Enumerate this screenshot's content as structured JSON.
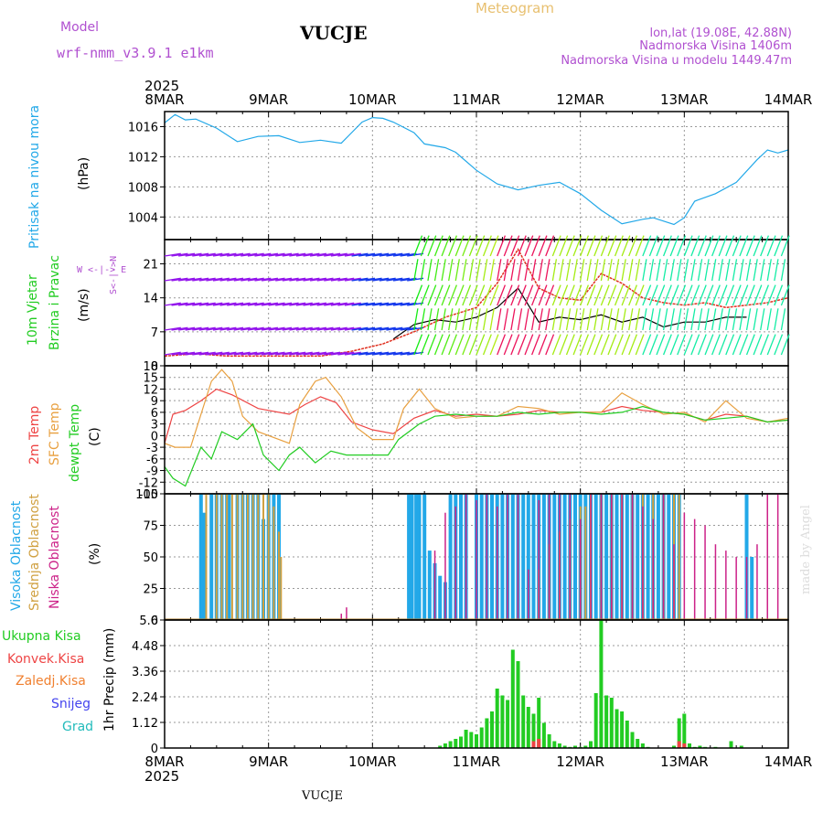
{
  "header": {
    "model_label": "Model",
    "model_name": "wrf-nmm_v3.9.1 e1km",
    "station": "VUCJE",
    "title": "Meteogram",
    "coords": "lon,lat (19.08E, 42.88N)",
    "altitude": "Nadmorska Visina 1406m",
    "model_altitude": "Nadmorska Visina u modelu 1449.47m",
    "year": "2025",
    "credit": "made by Angel"
  },
  "time_axis": {
    "labels": [
      "8MAR",
      "9MAR",
      "10MAR",
      "11MAR",
      "12MAR",
      "13MAR",
      "14MAR"
    ],
    "range_days": [
      0,
      6
    ]
  },
  "colors": {
    "pressure": "#22a8e8",
    "temp_2m": "#ee4444",
    "temp_sfc": "#e8a040",
    "dewpt": "#22cc22",
    "cloud_high": "#22a8e8",
    "cloud_mid": "#d0a040",
    "cloud_low": "#cc2288",
    "precip_total": "#22cc22",
    "precip_conv": "#ee4444"
  },
  "panels": {
    "pressure": {
      "title": "Pritisak na nivou mora",
      "unit": "(hPa)"
    },
    "wind": {
      "title_1": "10m Vjetar",
      "title_2": "Brzina i Pravac",
      "unit": "(m/s)",
      "compass_ns": "S<-|->N",
      "compass_we": "W <-|-> E"
    },
    "temperature": {
      "title_2m": "2m Temp",
      "title_sfc": "SFC Temp",
      "title_dewpt": "dewpt Temp",
      "unit": "(C)"
    },
    "clouds": {
      "title_high": "Visoka Oblacnost",
      "title_mid": "Srednja Oblacnost",
      "title_low": "Niska Oblacnost",
      "unit": "(%)"
    },
    "precip": {
      "title_total": "Ukupna Kisa",
      "title_conv": "Konvek.Kisa",
      "title_frz": "Zaledj.Kisa",
      "title_snow": "Snijeg",
      "title_hail": "Grad",
      "unit": "1hr Precip (mm)"
    }
  },
  "chart_data": [
    {
      "type": "line",
      "title": "",
      "ylabel": "(hPa)",
      "ylim": [
        1001,
        1018
      ],
      "yticks": [
        "1004",
        "1008",
        "1012",
        "1016"
      ],
      "grid": true,
      "series": [
        {
          "name": "Pritisak na nivou mora",
          "x": [
            0,
            0.1,
            0.2,
            0.3,
            0.5,
            0.7,
            0.9,
            1.1,
            1.3,
            1.5,
            1.7,
            1.9,
            2.0,
            2.1,
            2.2,
            2.4,
            2.5,
            2.7,
            2.8,
            3.0,
            3.2,
            3.4,
            3.6,
            3.8,
            4.0,
            4.2,
            4.4,
            4.6,
            4.7,
            4.9,
            5.0,
            5.1,
            5.3,
            5.5,
            5.7,
            5.8,
            5.9,
            6.0
          ],
          "y": [
            1016.5,
            1017.6,
            1016.9,
            1017.0,
            1015.8,
            1014.0,
            1014.7,
            1014.8,
            1013.9,
            1014.2,
            1013.8,
            1016.6,
            1017.2,
            1017.1,
            1016.6,
            1015.2,
            1013.7,
            1013.2,
            1012.6,
            1010.2,
            1008.4,
            1007.6,
            1008.2,
            1008.6,
            1007.1,
            1004.9,
            1003.1,
            1003.7,
            1003.9,
            1003.0,
            1003.9,
            1006.1,
            1007.1,
            1008.6,
            1011.6,
            1012.9,
            1012.5,
            1012.9
          ]
        }
      ]
    },
    {
      "type": "line",
      "title": "",
      "ylabel": "(m/s)",
      "ylim": [
        0,
        26
      ],
      "yticks": [
        "0",
        "7",
        "14",
        "21"
      ],
      "grid": true,
      "series": [
        {
          "name": "10m Vjetar (black)",
          "x": [
            2.2,
            2.4,
            2.6,
            2.8,
            3.0,
            3.2,
            3.4,
            3.6,
            3.8,
            4.0,
            4.2,
            4.4,
            4.6,
            4.8,
            5.0,
            5.2,
            5.4,
            5.6
          ],
          "y": [
            5.5,
            8.5,
            9.5,
            9.0,
            10.0,
            12.0,
            16.0,
            9.0,
            10.0,
            9.5,
            10.5,
            9.0,
            10.0,
            8.0,
            9.0,
            9.0,
            10.0,
            10.0
          ]
        },
        {
          "name": "gust (red)",
          "x": [
            0,
            0.3,
            0.6,
            0.9,
            1.2,
            1.5,
            1.8,
            2.1,
            2.4,
            2.7,
            3.0,
            3.2,
            3.4,
            3.6,
            3.8,
            4.0,
            4.2,
            4.4,
            4.6,
            4.8,
            5.0,
            5.2,
            5.4,
            5.6,
            5.8,
            6.0
          ],
          "y": [
            2.0,
            2.5,
            2.0,
            2.0,
            2.0,
            2.0,
            3.0,
            4.5,
            7.0,
            10.0,
            12.0,
            17.0,
            24.0,
            16.0,
            14.0,
            13.5,
            19.0,
            17.0,
            14.0,
            13.0,
            12.5,
            13.0,
            12.0,
            12.5,
            13.0,
            14.0
          ]
        }
      ]
    },
    {
      "type": "line",
      "title": "",
      "ylabel": "(C)",
      "ylim": [
        -15,
        18
      ],
      "yticks": [
        "18",
        "15",
        "12",
        "9",
        "6",
        "3",
        "0",
        "-3",
        "-6",
        "-9",
        "-12",
        "-15"
      ],
      "grid": true,
      "series": [
        {
          "name": "2m Temp",
          "x": [
            0,
            0.08,
            0.2,
            0.35,
            0.5,
            0.65,
            0.9,
            1.2,
            1.35,
            1.5,
            1.65,
            1.8,
            2.0,
            2.2,
            2.4,
            2.6,
            2.8,
            3.0,
            3.2,
            3.4,
            3.6,
            3.8,
            4.0,
            4.2,
            4.4,
            4.6,
            4.8,
            5.0,
            5.2,
            5.4,
            5.6,
            5.8,
            6.0
          ],
          "y": [
            -2,
            5.5,
            6.5,
            9,
            12,
            10.5,
            7,
            5.5,
            8,
            10,
            8.5,
            3.5,
            1.5,
            0.5,
            4.5,
            6.5,
            5,
            5.5,
            5,
            5.5,
            6.5,
            6,
            6,
            6,
            7.5,
            6.5,
            6,
            5.5,
            4,
            5.5,
            5,
            3.5,
            4
          ]
        },
        {
          "name": "SFC Temp",
          "x": [
            0,
            0.1,
            0.25,
            0.45,
            0.55,
            0.65,
            0.75,
            0.9,
            1.2,
            1.3,
            1.45,
            1.55,
            1.7,
            1.85,
            2.0,
            2.2,
            2.3,
            2.45,
            2.6,
            2.8,
            3.0,
            3.2,
            3.4,
            3.6,
            3.8,
            4.0,
            4.2,
            4.4,
            4.6,
            4.8,
            5.0,
            5.2,
            5.4,
            5.6,
            5.8,
            6.0
          ],
          "y": [
            -2,
            -3,
            -3,
            14,
            17,
            14,
            5,
            1,
            -2,
            8,
            14,
            15,
            10,
            2,
            -1,
            -1,
            7,
            12,
            7,
            4.5,
            5,
            5,
            7.5,
            7,
            5.5,
            6,
            6,
            11,
            8,
            5.5,
            6,
            3.5,
            9,
            4.5,
            3.5,
            4.5
          ]
        },
        {
          "name": "dewpt Temp",
          "x": [
            0,
            0.08,
            0.2,
            0.35,
            0.45,
            0.55,
            0.7,
            0.85,
            0.95,
            1.1,
            1.2,
            1.3,
            1.45,
            1.6,
            1.75,
            1.9,
            2.0,
            2.15,
            2.25,
            2.45,
            2.6,
            2.8,
            3.0,
            3.2,
            3.4,
            3.6,
            3.8,
            4.0,
            4.2,
            4.4,
            4.6,
            4.8,
            5.0,
            5.2,
            5.4,
            5.6,
            5.8,
            6.0
          ],
          "y": [
            -8,
            -11,
            -13,
            -3,
            -6,
            1,
            -1,
            3,
            -5,
            -9,
            -5,
            -3,
            -7,
            -4,
            -5,
            -5,
            -5,
            -5,
            -1,
            3,
            5,
            5.5,
            5,
            5,
            6,
            5.5,
            6,
            6,
            5.5,
            6,
            7.5,
            6,
            5.5,
            4,
            4.5,
            5,
            3.5,
            4
          ]
        }
      ]
    },
    {
      "type": "bar",
      "title": "",
      "ylabel": "(%)",
      "ylim": [
        0,
        100
      ],
      "yticks": [
        "0",
        "25",
        "50",
        "75",
        "100"
      ],
      "grid": true,
      "series": [
        {
          "name": "Visoka Oblacnost",
          "x": [
            0.35,
            0.38,
            0.45,
            0.5,
            0.55,
            0.6,
            0.62,
            0.7,
            0.75,
            0.8,
            0.85,
            0.9,
            0.95,
            1.0,
            1.05,
            1.1,
            2.35,
            2.38,
            2.42,
            2.45,
            2.5,
            2.55,
            2.6,
            2.65,
            2.7,
            2.75,
            2.8,
            2.85,
            2.9,
            3.0,
            3.05,
            3.1,
            3.15,
            3.2,
            3.25,
            3.3,
            3.35,
            3.4,
            3.45,
            3.5,
            3.55,
            3.6,
            3.65,
            3.7,
            3.75,
            3.8,
            3.85,
            3.9,
            3.95,
            4.0,
            4.05,
            4.1,
            4.15,
            4.2,
            4.25,
            4.3,
            4.35,
            4.4,
            4.45,
            4.5,
            4.55,
            4.6,
            4.65,
            4.7,
            4.75,
            4.8,
            4.85,
            4.9,
            4.95,
            5.6,
            5.65
          ],
          "y": [
            100,
            85,
            100,
            100,
            100,
            100,
            100,
            100,
            100,
            100,
            100,
            100,
            80,
            100,
            100,
            100,
            100,
            100,
            100,
            100,
            100,
            55,
            45,
            35,
            30,
            100,
            100,
            100,
            100,
            100,
            100,
            100,
            100,
            100,
            100,
            100,
            100,
            100,
            100,
            100,
            100,
            100,
            100,
            100,
            100,
            100,
            100,
            100,
            100,
            100,
            100,
            100,
            100,
            100,
            100,
            100,
            100,
            100,
            100,
            100,
            100,
            100,
            100,
            100,
            100,
            100,
            100,
            100,
            100,
            100,
            50
          ]
        },
        {
          "name": "Srednja Oblacnost",
          "x": [
            0.4,
            0.5,
            0.55,
            0.6,
            0.65,
            0.7,
            0.75,
            0.8,
            0.85,
            0.9,
            0.95,
            1.0,
            1.05,
            1.1,
            1.12,
            3.6,
            3.7,
            3.8,
            3.9,
            4.0,
            4.05,
            4.1,
            4.2,
            4.3,
            4.4,
            4.5,
            4.6,
            4.7,
            4.8,
            4.9,
            4.95
          ],
          "y": [
            100,
            100,
            100,
            100,
            100,
            100,
            100,
            100,
            100,
            100,
            100,
            100,
            90,
            70,
            50,
            40,
            60,
            70,
            80,
            90,
            90,
            100,
            100,
            100,
            100,
            100,
            100,
            100,
            100,
            100,
            100
          ]
        },
        {
          "name": "Niska Oblacnost",
          "x": [
            1.7,
            1.75,
            2.6,
            2.7,
            2.8,
            2.9,
            3.0,
            3.1,
            3.2,
            3.3,
            3.4,
            3.5,
            3.6,
            3.7,
            3.8,
            3.9,
            4.0,
            4.1,
            4.2,
            4.3,
            4.4,
            4.5,
            4.6,
            4.7,
            4.8,
            4.9,
            5.0,
            5.1,
            5.2,
            5.3,
            5.4,
            5.5,
            5.6,
            5.7,
            5.8,
            5.9
          ],
          "y": [
            5,
            10,
            55,
            85,
            90,
            100,
            95,
            100,
            90,
            100,
            100,
            40,
            95,
            100,
            100,
            100,
            80,
            100,
            100,
            100,
            100,
            100,
            90,
            80,
            100,
            60,
            85,
            80,
            75,
            60,
            55,
            50,
            50,
            60,
            100,
            100
          ]
        }
      ]
    },
    {
      "type": "bar",
      "title": "",
      "ylabel": "1hr Precip (mm)",
      "ylim": [
        0,
        5.6
      ],
      "yticks": [
        "0",
        "1.12",
        "2.24",
        "3.36",
        "4.48",
        "5.6"
      ],
      "grid": true,
      "series": [
        {
          "name": "Ukupna Kisa",
          "x": [
            2.65,
            2.7,
            2.75,
            2.8,
            2.85,
            2.9,
            2.95,
            3.0,
            3.05,
            3.1,
            3.15,
            3.2,
            3.25,
            3.3,
            3.35,
            3.4,
            3.45,
            3.5,
            3.55,
            3.6,
            3.65,
            3.7,
            3.75,
            3.8,
            3.85,
            3.9,
            3.95,
            4.0,
            4.05,
            4.1,
            4.15,
            4.2,
            4.25,
            4.3,
            4.35,
            4.4,
            4.45,
            4.5,
            4.55,
            4.6,
            4.65,
            4.9,
            4.95,
            5.0,
            5.05,
            5.1,
            5.15,
            5.2,
            5.3,
            5.45,
            5.55
          ],
          "y": [
            0.1,
            0.2,
            0.3,
            0.4,
            0.5,
            0.8,
            0.7,
            0.6,
            0.9,
            1.3,
            1.6,
            2.6,
            2.3,
            2.1,
            4.3,
            3.8,
            2.3,
            1.8,
            1.5,
            2.2,
            1.1,
            0.6,
            0.3,
            0.2,
            0.1,
            0.05,
            0.1,
            0.05,
            0.1,
            0.3,
            2.4,
            5.6,
            2.3,
            2.2,
            1.7,
            1.6,
            1.2,
            0.7,
            0.4,
            0.2,
            0.05,
            0.1,
            1.3,
            1.5,
            0.2,
            0.05,
            0.1,
            0.05,
            0.05,
            0.3,
            0.1
          ]
        },
        {
          "name": "Konvek.Kisa",
          "x": [
            3.55,
            3.6,
            4.95,
            5.0
          ],
          "y": [
            0.3,
            0.4,
            0.3,
            0.2
          ]
        }
      ]
    }
  ]
}
